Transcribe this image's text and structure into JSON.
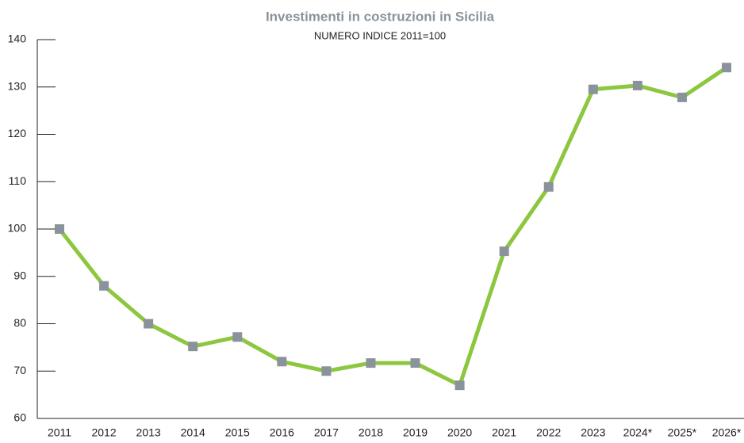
{
  "chart_data": {
    "type": "line",
    "title": "Investimenti in costruzioni in Sicilia",
    "subtitle": "NUMERO INDICE 2011=100",
    "categories": [
      "2011",
      "2012",
      "2013",
      "2014",
      "2015",
      "2016",
      "2017",
      "2018",
      "2019",
      "2020",
      "2021",
      "2022",
      "2023",
      "2024*",
      "2025*",
      "2026*"
    ],
    "values": [
      100,
      88,
      80,
      75.2,
      77.2,
      72,
      70,
      71.7,
      71.7,
      67,
      95.3,
      108.9,
      129.5,
      130.3,
      127.8,
      134.1
    ],
    "color": "#8dc63f",
    "marker_color": "#8a939b",
    "ylim": [
      60,
      140
    ],
    "yticks": [
      60,
      70,
      80,
      90,
      100,
      110,
      120,
      130,
      140
    ]
  }
}
